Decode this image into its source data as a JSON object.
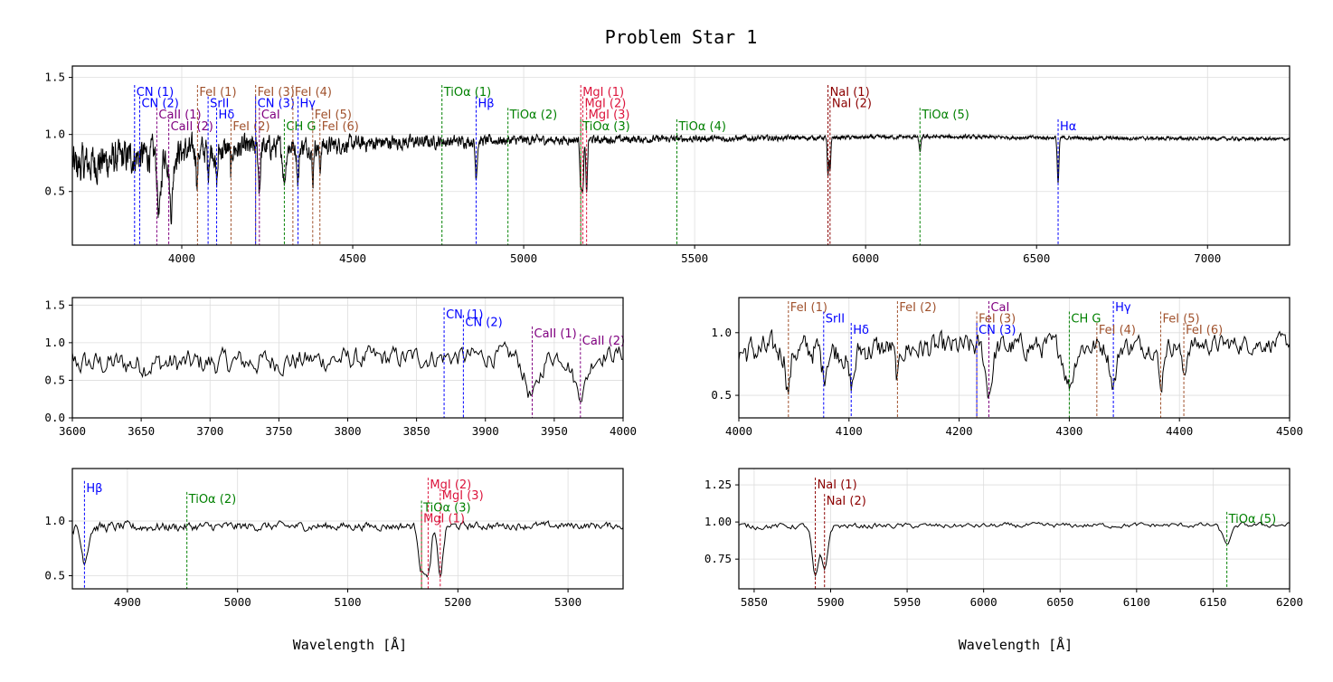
{
  "figure": {
    "title": "Problem Star 1",
    "xlabel": "Wavelength [$\\AA$]",
    "xlabel_display": "Wavelength [Å]"
  },
  "colors": {
    "spectrum": "#000000",
    "grid": "#dddddd",
    "CN": "#0000ff",
    "CaII": "#800080",
    "CaI": "#800080",
    "FeI": "#a0522d",
    "SrII": "#0000ff",
    "Hbeta": "#0000ff",
    "Hdelta": "#0000ff",
    "Hgamma": "#0000ff",
    "Halpha": "#0000ff",
    "CH": "#008000",
    "G": "#008000",
    "TiO": "#008000",
    "MgI": "#dc143c",
    "NaI": "#8b0000"
  },
  "chart_data": [
    {
      "panel": "main",
      "type": "line",
      "title": "Problem Star 1",
      "xlim": [
        3680,
        7240
      ],
      "ylim": [
        0.03,
        1.6
      ],
      "xticks": [
        4000,
        4500,
        5000,
        5500,
        6000,
        6500,
        7000
      ],
      "yticks": [
        0.5,
        1.0,
        1.5
      ],
      "ytick_labels": [
        "0.5",
        "1.0",
        "1.5"
      ],
      "grid": true,
      "spectrum_profile": {
        "continuum": [
          [
            3680,
            0.72
          ],
          [
            3800,
            0.78
          ],
          [
            3900,
            0.82
          ],
          [
            4000,
            0.85
          ],
          [
            4200,
            0.88
          ],
          [
            4400,
            0.9
          ],
          [
            4600,
            0.93
          ],
          [
            4800,
            0.94
          ],
          [
            5000,
            0.95
          ],
          [
            5400,
            0.96
          ],
          [
            5800,
            0.97
          ],
          [
            6200,
            0.98
          ],
          [
            6600,
            0.97
          ],
          [
            7240,
            0.96
          ]
        ],
        "noise_amplitude": [
          [
            3680,
            0.3
          ],
          [
            4000,
            0.22
          ],
          [
            4500,
            0.12
          ],
          [
            5000,
            0.07
          ],
          [
            5500,
            0.05
          ],
          [
            6000,
            0.03
          ],
          [
            7240,
            0.025
          ]
        ]
      },
      "annotations": [
        {
          "label": "CN (1)",
          "x": 3862,
          "y": 1.37,
          "species": "CN"
        },
        {
          "label": "CN (2)",
          "x": 3877,
          "y": 1.27,
          "species": "CN"
        },
        {
          "label": "CaII (1)",
          "x": 3927,
          "y": 1.17,
          "species": "CaII"
        },
        {
          "label": "CaII (2)",
          "x": 3962,
          "y": 1.07,
          "species": "CaII"
        },
        {
          "label": "FeI (1)",
          "x": 4046,
          "y": 1.37,
          "species": "FeI"
        },
        {
          "label": "SrII",
          "x": 4077,
          "y": 1.27,
          "species": "SrII"
        },
        {
          "label": "Hδ",
          "x": 4102,
          "y": 1.17,
          "species": "Hdelta"
        },
        {
          "label": "FeI (2)",
          "x": 4144,
          "y": 1.07,
          "species": "FeI"
        },
        {
          "label": "FeI (3)",
          "x": 4216,
          "y": 1.37,
          "species": "FeI"
        },
        {
          "label": "CN (3)",
          "x": 4216,
          "y": 1.27,
          "species": "CN"
        },
        {
          "label": "CaI",
          "x": 4227,
          "y": 1.17,
          "species": "CaI"
        },
        {
          "label": "CH G",
          "x": 4300,
          "y": 1.07,
          "species": "CH"
        },
        {
          "label": "FeI (4)",
          "x": 4325,
          "y": 1.37,
          "species": "FeI"
        },
        {
          "label": "Hγ",
          "x": 4340,
          "y": 1.27,
          "species": "Hgamma"
        },
        {
          "label": "FeI (5)",
          "x": 4383,
          "y": 1.17,
          "species": "FeI"
        },
        {
          "label": "FeI (6)",
          "x": 4404,
          "y": 1.07,
          "species": "FeI"
        },
        {
          "label": "TiOα (1)",
          "x": 4761,
          "y": 1.37,
          "species": "TiO"
        },
        {
          "label": "Hβ",
          "x": 4861,
          "y": 1.27,
          "species": "Hbeta"
        },
        {
          "label": "TiOα (2)",
          "x": 4954,
          "y": 1.17,
          "species": "TiO"
        },
        {
          "label": "MgI (1)",
          "x": 5167,
          "y": 1.37,
          "species": "MgI"
        },
        {
          "label": "MgI (2)",
          "x": 5173,
          "y": 1.27,
          "species": "MgI"
        },
        {
          "label": "MgI (3)",
          "x": 5184,
          "y": 1.17,
          "species": "MgI"
        },
        {
          "label": "TiOα (3)",
          "x": 5167,
          "y": 1.07,
          "species": "TiO"
        },
        {
          "label": "TiOα (4)",
          "x": 5448,
          "y": 1.07,
          "species": "TiO"
        },
        {
          "label": "NaI (1)",
          "x": 5890,
          "y": 1.37,
          "species": "NaI"
        },
        {
          "label": "NaI (2)",
          "x": 5896,
          "y": 1.27,
          "species": "NaI"
        },
        {
          "label": "TiOα (5)",
          "x": 6159,
          "y": 1.17,
          "species": "TiO"
        },
        {
          "label": "Hα",
          "x": 6563,
          "y": 1.07,
          "species": "Halpha"
        }
      ]
    },
    {
      "panel": "zoom-3600-4000",
      "type": "line",
      "xlim": [
        3600,
        4000
      ],
      "ylim": [
        0.0,
        1.6
      ],
      "xticks": [
        3600,
        3650,
        3700,
        3750,
        3800,
        3850,
        3900,
        3950,
        4000
      ],
      "yticks": [
        0.0,
        0.5,
        1.0,
        1.5
      ],
      "ytick_labels": [
        "0.0",
        "0.5",
        "1.0",
        "1.5"
      ],
      "grid": true,
      "annotations": [
        {
          "label": "CN (1)",
          "x": 3870,
          "y": 1.37,
          "species": "CN"
        },
        {
          "label": "CN (2)",
          "x": 3884,
          "y": 1.27,
          "species": "CN"
        },
        {
          "label": "CaII (1)",
          "x": 3934,
          "y": 1.12,
          "species": "CaII"
        },
        {
          "label": "CaII (2)",
          "x": 3969,
          "y": 1.02,
          "species": "CaII"
        }
      ]
    },
    {
      "panel": "zoom-4000-4500",
      "type": "line",
      "xlim": [
        4000,
        4500
      ],
      "ylim": [
        0.32,
        1.28
      ],
      "xticks": [
        4000,
        4100,
        4200,
        4300,
        4400,
        4500
      ],
      "yticks": [
        0.5,
        1.0
      ],
      "ytick_labels": [
        "0.5",
        "1.0"
      ],
      "grid": true,
      "annotations": [
        {
          "label": "FeI (1)",
          "x": 4045,
          "y": 1.2,
          "species": "FeI"
        },
        {
          "label": "SrII",
          "x": 4077,
          "y": 1.11,
          "species": "SrII"
        },
        {
          "label": "Hδ",
          "x": 4102,
          "y": 1.02,
          "species": "Hdelta"
        },
        {
          "label": "FeI (2)",
          "x": 4144,
          "y": 1.2,
          "species": "FeI"
        },
        {
          "label": "CaI",
          "x": 4227,
          "y": 1.2,
          "species": "CaI"
        },
        {
          "label": "FeI (3)",
          "x": 4216,
          "y": 1.11,
          "species": "FeI"
        },
        {
          "label": "CN (3)",
          "x": 4216,
          "y": 1.02,
          "species": "CN"
        },
        {
          "label": "CH G",
          "x": 4300,
          "y": 1.11,
          "species": "CH"
        },
        {
          "label": "Hγ",
          "x": 4340,
          "y": 1.2,
          "species": "Hgamma"
        },
        {
          "label": "FeI (4)",
          "x": 4325,
          "y": 1.02,
          "species": "FeI"
        },
        {
          "label": "FeI (5)",
          "x": 4383,
          "y": 1.11,
          "species": "FeI"
        },
        {
          "label": "FeI (6)",
          "x": 4404,
          "y": 1.02,
          "species": "FeI"
        }
      ]
    },
    {
      "panel": "zoom-4850-5350",
      "type": "line",
      "xlim": [
        4850,
        5350
      ],
      "ylim": [
        0.38,
        1.48
      ],
      "xticks": [
        4900,
        5000,
        5100,
        5200,
        5300
      ],
      "yticks": [
        0.5,
        1.0
      ],
      "ytick_labels": [
        "0.5",
        "1.0"
      ],
      "grid": true,
      "annotations": [
        {
          "label": "Hβ",
          "x": 4861,
          "y": 1.3,
          "species": "Hbeta"
        },
        {
          "label": "TiOα (2)",
          "x": 4954,
          "y": 1.2,
          "species": "TiO"
        },
        {
          "label": "MgI (2)",
          "x": 5173,
          "y": 1.33,
          "species": "MgI"
        },
        {
          "label": "MgI (3)",
          "x": 5184,
          "y": 1.23,
          "species": "MgI"
        },
        {
          "label": "TiOα (3)",
          "x": 5167,
          "y": 1.12,
          "species": "TiO"
        },
        {
          "label": "MgI (1)",
          "x": 5167,
          "y": 1.02,
          "species": "MgI"
        }
      ]
    },
    {
      "panel": "zoom-5840-6200",
      "type": "line",
      "xlim": [
        5840,
        6200
      ],
      "ylim": [
        0.55,
        1.36
      ],
      "xticks": [
        5850,
        5900,
        5950,
        6000,
        6050,
        6100,
        6150,
        6200
      ],
      "yticks": [
        0.75,
        1.0,
        1.25
      ],
      "ytick_labels": [
        "0.75",
        "1.00",
        "1.25"
      ],
      "grid": true,
      "annotations": [
        {
          "label": "NaI (1)",
          "x": 5890,
          "y": 1.25,
          "species": "NaI"
        },
        {
          "label": "NaI (2)",
          "x": 5896,
          "y": 1.14,
          "species": "NaI"
        },
        {
          "label": "TiOα (5)",
          "x": 6159,
          "y": 1.02,
          "species": "TiO"
        }
      ]
    }
  ]
}
